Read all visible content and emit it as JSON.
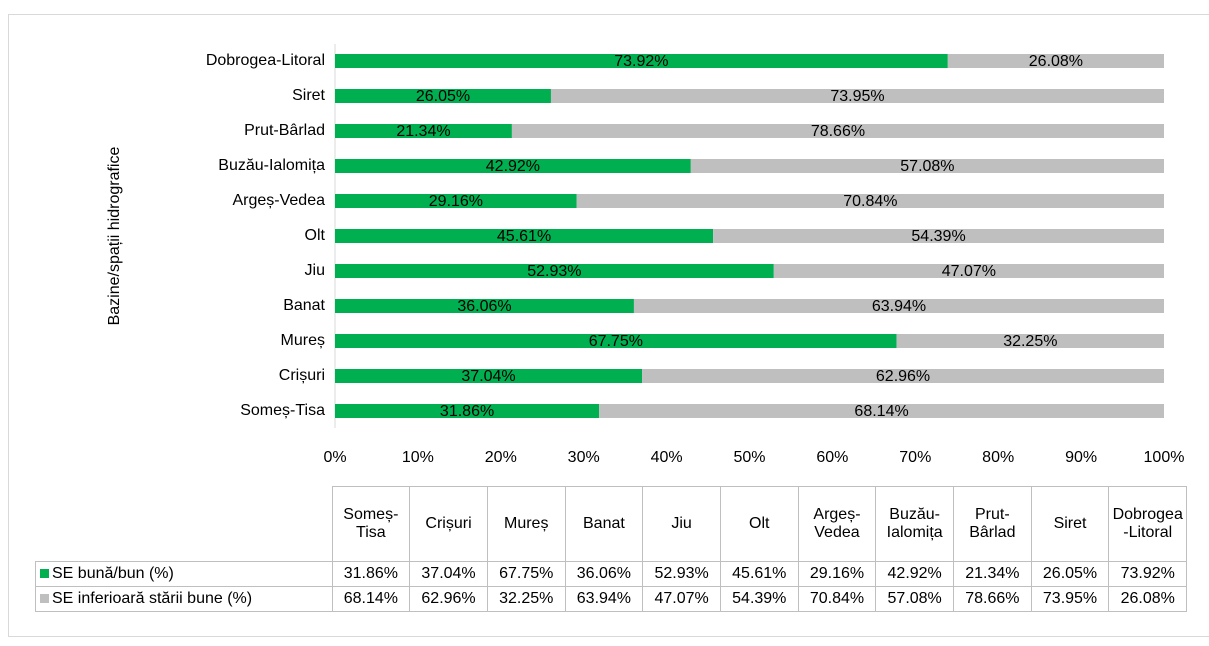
{
  "chart_data": {
    "type": "bar",
    "orientation": "horizontal",
    "stacked": true,
    "y_axis_label": "Bazine/spații hidrografice",
    "categories": [
      "Someș-Tisa",
      "Crișuri",
      "Mureș",
      "Banat",
      "Jiu",
      "Olt",
      "Argeș-Vedea",
      "Buzău-Ialomița",
      "Prut-Bârlad",
      "Siret",
      "Dobrogea-Litoral"
    ],
    "series": [
      {
        "name": "SE bună/bun (%)",
        "color": "#00b050",
        "values": [
          31.86,
          37.04,
          67.75,
          36.06,
          52.93,
          45.61,
          29.16,
          42.92,
          21.34,
          26.05,
          73.92
        ],
        "value_labels": [
          "31.86%",
          "37.04%",
          "67.75%",
          "36.06%",
          "52.93%",
          "45.61%",
          "29.16%",
          "42.92%",
          "21.34%",
          "26.05%",
          "73.92%"
        ]
      },
      {
        "name": "SE inferioară stării bune (%)",
        "color": "#bfbfbf",
        "values": [
          68.14,
          62.96,
          32.25,
          63.94,
          47.07,
          54.39,
          70.84,
          57.08,
          78.66,
          73.95,
          26.08
        ],
        "value_labels": [
          "68.14%",
          "62.96%",
          "32.25%",
          "63.94%",
          "47.07%",
          "54.39%",
          "70.84%",
          "57.08%",
          "78.66%",
          "73.95%",
          "26.08%"
        ]
      }
    ],
    "xlim": [
      0,
      100
    ],
    "xticks": [
      {
        "value": 0,
        "label": "0%"
      },
      {
        "value": 10,
        "label": "10%"
      },
      {
        "value": 20,
        "label": "20%"
      },
      {
        "value": 30,
        "label": "30%"
      },
      {
        "value": 40,
        "label": "40%"
      },
      {
        "value": 50,
        "label": "50%"
      },
      {
        "value": 60,
        "label": "60%"
      },
      {
        "value": 70,
        "label": "70%"
      },
      {
        "value": 80,
        "label": "80%"
      },
      {
        "value": 90,
        "label": "90%"
      },
      {
        "value": 100,
        "label": "100%"
      }
    ],
    "grid": false,
    "data_table": true
  }
}
